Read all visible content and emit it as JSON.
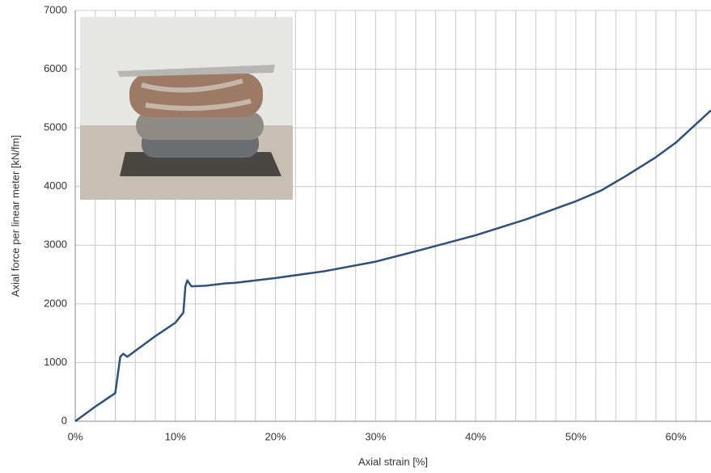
{
  "chart_data": {
    "type": "line",
    "xlabel": "Axial strain [%]",
    "ylabel": "Axial force per linear meter [kN/fm]",
    "x": [
      0,
      2,
      4,
      4.5,
      4.8,
      5.2,
      6,
      8,
      10,
      10.8,
      11,
      11.2,
      11.6,
      13,
      15,
      16,
      20,
      25,
      30,
      35,
      40,
      45,
      50,
      52.5,
      55,
      58,
      60,
      63.5
    ],
    "values": [
      0,
      250,
      480,
      1100,
      1150,
      1100,
      1200,
      1450,
      1680,
      1850,
      2300,
      2400,
      2300,
      2310,
      2350,
      2360,
      2440,
      2560,
      2720,
      2940,
      3170,
      3440,
      3750,
      3930,
      4180,
      4500,
      4750,
      5300
    ],
    "color": "#2f4f7f",
    "xlim": [
      0,
      63.5
    ],
    "ylim": [
      0,
      7000
    ],
    "xticks": [
      {
        "value": 0,
        "label": "0%"
      },
      {
        "value": 10,
        "label": "10%"
      },
      {
        "value": 20,
        "label": "20%"
      },
      {
        "value": 30,
        "label": "30%"
      },
      {
        "value": 40,
        "label": "40%"
      },
      {
        "value": 50,
        "label": "50%"
      },
      {
        "value": 60,
        "label": "60%"
      }
    ],
    "xgrid": [
      2,
      4,
      6,
      8,
      12,
      14,
      16,
      18,
      22,
      24,
      26,
      28,
      32,
      34,
      36,
      38,
      42,
      44,
      46,
      48,
      52,
      54,
      56,
      58,
      62
    ],
    "yticks": [
      0,
      1000,
      2000,
      3000,
      4000,
      5000,
      6000,
      7000
    ],
    "grid": true
  }
}
